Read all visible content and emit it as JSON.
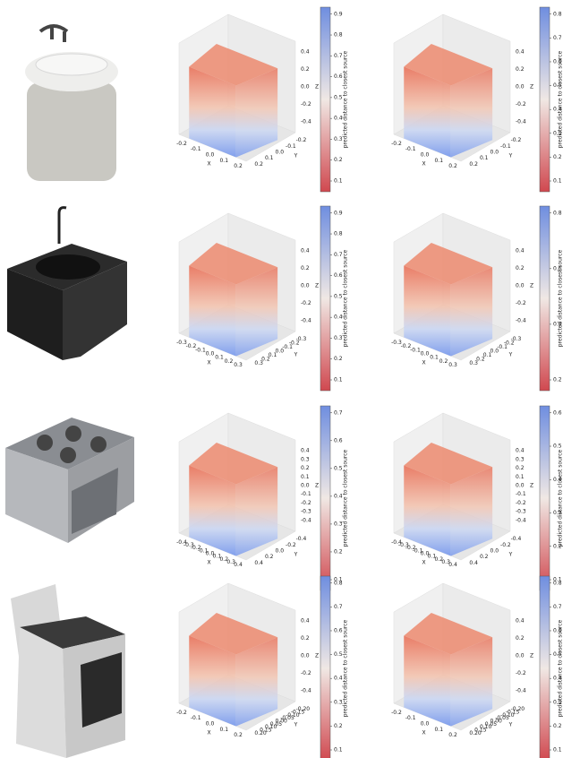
{
  "rows": [
    {
      "panels": [
        {
          "x_label": "X",
          "y_label": "Y",
          "z_label": "Z",
          "xticks": [
            "-0.2",
            "-0.1",
            "0.0",
            "0.1",
            "0.2"
          ],
          "yticks": [
            "-0.2",
            "-0.1",
            "0.0",
            "0.1",
            "0.2"
          ],
          "zticks": [
            "-0.4",
            "-0.2",
            "0.0",
            "0.2",
            "0.4"
          ],
          "colorbar_label": "predicted distance to closest source",
          "colorbar_ticks": [
            "0.1",
            "0.2",
            "0.3",
            "0.4",
            "0.5",
            "0.6",
            "0.7",
            "0.8",
            "0.9"
          ]
        },
        {
          "x_label": "X",
          "y_label": "Y",
          "z_label": "Z",
          "xticks": [
            "-0.2",
            "-0.1",
            "0.0",
            "0.1",
            "0.2"
          ],
          "yticks": [
            "-0.2",
            "-0.1",
            "0.0",
            "0.1",
            "0.2"
          ],
          "zticks": [
            "-0.4",
            "-0.2",
            "0.0",
            "0.2",
            "0.4"
          ],
          "colorbar_label": "predicted distance to closest source",
          "colorbar_ticks": [
            "0.1",
            "0.2",
            "0.3",
            "0.4",
            "0.5",
            "0.6",
            "0.7",
            "0.8"
          ]
        }
      ]
    },
    {
      "panels": [
        {
          "x_label": "X",
          "y_label": "Y",
          "z_label": "Z",
          "xticks": [
            "-0.3",
            "-0.2",
            "-0.1",
            "0.0",
            "0.1",
            "0.2",
            "0.3"
          ],
          "yticks": [
            "-0.3",
            "-0.2",
            "-0.1",
            "0.0",
            "0.1",
            "0.2",
            "0.3"
          ],
          "zticks": [
            "-0.4",
            "-0.2",
            "0.0",
            "0.2",
            "0.4"
          ],
          "colorbar_label": "predicted distance to closest source",
          "colorbar_ticks": [
            "0.1",
            "0.2",
            "0.3",
            "0.4",
            "0.5",
            "0.6",
            "0.7",
            "0.8",
            "0.9"
          ]
        },
        {
          "x_label": "X",
          "y_label": "Y",
          "z_label": "Z",
          "xticks": [
            "-0.3",
            "-0.2",
            "-0.1",
            "0.0",
            "0.1",
            "0.2",
            "0.3"
          ],
          "yticks": [
            "-0.3",
            "-0.2",
            "-0.1",
            "0.0",
            "0.1",
            "0.2",
            "0.3"
          ],
          "zticks": [
            "-0.4",
            "-0.2",
            "0.0",
            "0.2",
            "0.4"
          ],
          "colorbar_label": "predicted distance to closest source",
          "colorbar_ticks": [
            "0.2",
            "0.4",
            "0.6",
            "0.8"
          ]
        }
      ]
    },
    {
      "panels": [
        {
          "x_label": "X",
          "y_label": "Y",
          "z_label": "Z",
          "xticks": [
            "-0.4",
            "-0.3",
            "-0.2",
            "-0.1",
            "0.0",
            "0.1",
            "0.2",
            "0.3",
            "0.4"
          ],
          "yticks": [
            "-0.4",
            "-0.2",
            "0.0",
            "0.2",
            "0.4"
          ],
          "zticks": [
            "-0.4",
            "-0.3",
            "-0.2",
            "-0.1",
            "0.0",
            "0.1",
            "0.2",
            "0.3",
            "0.4"
          ],
          "colorbar_label": "predicted distance to closest source",
          "colorbar_ticks": [
            "0.1",
            "0.2",
            "0.3",
            "0.4",
            "0.5",
            "0.6",
            "0.7"
          ]
        },
        {
          "x_label": "X",
          "y_label": "Y",
          "z_label": "Z",
          "xticks": [
            "-0.4",
            "-0.3",
            "-0.2",
            "-0.1",
            "0.0",
            "0.1",
            "0.2",
            "0.3",
            "0.4"
          ],
          "yticks": [
            "-0.4",
            "-0.2",
            "0.0",
            "0.2",
            "0.4"
          ],
          "zticks": [
            "-0.4",
            "-0.3",
            "-0.2",
            "-0.1",
            "0.0",
            "0.1",
            "0.2",
            "0.3",
            "0.4"
          ],
          "colorbar_label": "predicted distance to closest source",
          "colorbar_ticks": [
            "0.1",
            "0.2",
            "0.3",
            "0.4",
            "0.5",
            "0.6"
          ]
        }
      ]
    },
    {
      "panels": [
        {
          "x_label": "X",
          "y_label": "Y",
          "z_label": "Z",
          "xticks": [
            "-0.2",
            "-0.1",
            "0.0",
            "0.1",
            "0.2"
          ],
          "yticks": [
            "-0.20",
            "-0.15",
            "-0.10",
            "-0.05",
            "0.00",
            "0.05",
            "0.10",
            "0.15",
            "0.20"
          ],
          "zticks": [
            "-0.4",
            "-0.2",
            "0.0",
            "0.2",
            "0.4"
          ],
          "colorbar_label": "predicted distance to closest source",
          "colorbar_ticks": [
            "0.1",
            "0.2",
            "0.3",
            "0.4",
            "0.5",
            "0.6",
            "0.7",
            "0.8"
          ]
        },
        {
          "x_label": "X",
          "y_label": "Y",
          "z_label": "Z",
          "xticks": [
            "-0.2",
            "-0.1",
            "0.0",
            "0.1",
            "0.2"
          ],
          "yticks": [
            "-0.20",
            "-0.15",
            "-0.10",
            "-0.05",
            "0.00",
            "0.05",
            "0.10",
            "0.15",
            "0.20"
          ],
          "zticks": [
            "-0.4",
            "-0.2",
            "0.0",
            "0.2",
            "0.4"
          ],
          "colorbar_label": "predicted distance to closest source",
          "colorbar_ticks": [
            "0.1",
            "0.2",
            "0.3",
            "0.4",
            "0.5",
            "0.6",
            "0.7",
            "0.8"
          ]
        }
      ]
    }
  ]
}
